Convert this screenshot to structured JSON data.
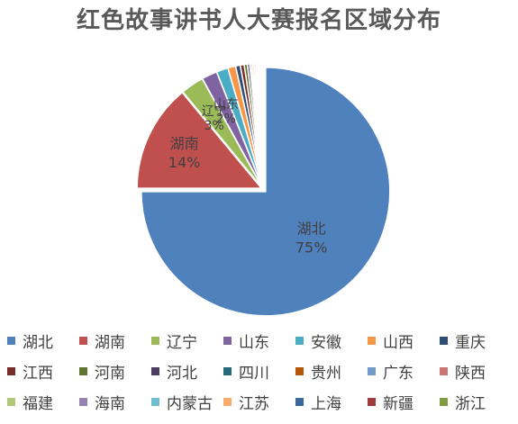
{
  "chart_data": {
    "type": "pie",
    "title": "红色故事讲书人大赛报名区域分布",
    "categories": [
      "湖北",
      "湖南",
      "辽宁",
      "山东",
      "安徽",
      "山西",
      "重庆",
      "江西",
      "河南",
      "河北",
      "四川",
      "贵州",
      "广东",
      "陕西",
      "福建",
      "海南",
      "内蒙古",
      "江苏",
      "上海",
      "新疆",
      "浙江"
    ],
    "values": [
      75,
      14,
      3,
      2,
      1.5,
      1,
      0.6,
      0.5,
      0.4,
      0.3,
      0.2,
      0.2,
      0.2,
      0.2,
      0.15,
      0.15,
      0.15,
      0.15,
      0.1,
      0.1,
      0.1
    ],
    "data_labels": [
      {
        "category": "湖北",
        "label": "湖北",
        "percent": "75%"
      },
      {
        "category": "湖南",
        "label": "湖南",
        "percent": "14%"
      },
      {
        "category": "辽宁",
        "label": "辽宁",
        "percent": "3%"
      },
      {
        "category": "山东",
        "label": "山东",
        "percent": "2%"
      }
    ],
    "colors": [
      "#4F81BD",
      "#C0504D",
      "#9BBB59",
      "#8064A2",
      "#4BACC6",
      "#F79646",
      "#2C4D75",
      "#772C2A",
      "#5F7530",
      "#4D3B62",
      "#276A7C",
      "#B65708",
      "#729ACA",
      "#CD7371",
      "#AFC97A",
      "#9983B5",
      "#6FBDD1",
      "#F9AB6B",
      "#3A679C",
      "#9F3B38",
      "#7E9D40"
    ],
    "legend_position": "bottom"
  }
}
